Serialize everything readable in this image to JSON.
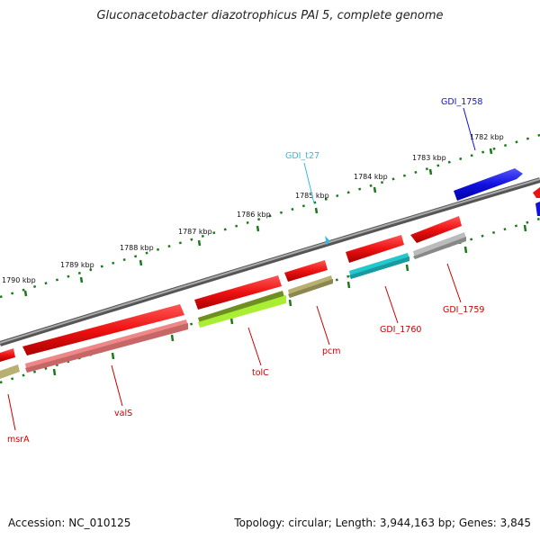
{
  "title": "Gluconacetobacter diazotrophicus PAl 5, complete genome",
  "footer": {
    "accession": "Accession: NC_010125",
    "summary": "Topology: circular; Length: 3,944,163 bp; Genes: 3,845"
  },
  "ruler_labels": [
    "1782 kbp",
    "1783 kbp",
    "1784 kbp",
    "1785 kbp",
    "1786 kbp",
    "1787 kbp",
    "1788 kbp",
    "1789 kbp",
    "1790 kbp"
  ],
  "gene_labels": {
    "gdi_1758": "GDI_1758",
    "gdi_t27": "GDI_t27",
    "gdi_1759": "GDI_1759",
    "gdi_1760": "GDI_1760",
    "pcm": "pcm",
    "tolc": "tolC",
    "vals": "valS",
    "msra": "msrA"
  },
  "colors": {
    "backbone": "#7f7f7f",
    "tick": "#1a7a1a",
    "gene": "#ee1111",
    "gene_red_label": "#cc0000",
    "gene_blue": "#1111dd",
    "trna": "#33bbdd",
    "cyan_bar": "#22c8cc",
    "khaki_bar": "#b8b070",
    "olive_bar": "#6f8f22",
    "lime_bar": "#aaee33",
    "pink_bar": "#ee8888",
    "gray_bar": "#bbbbbb"
  }
}
